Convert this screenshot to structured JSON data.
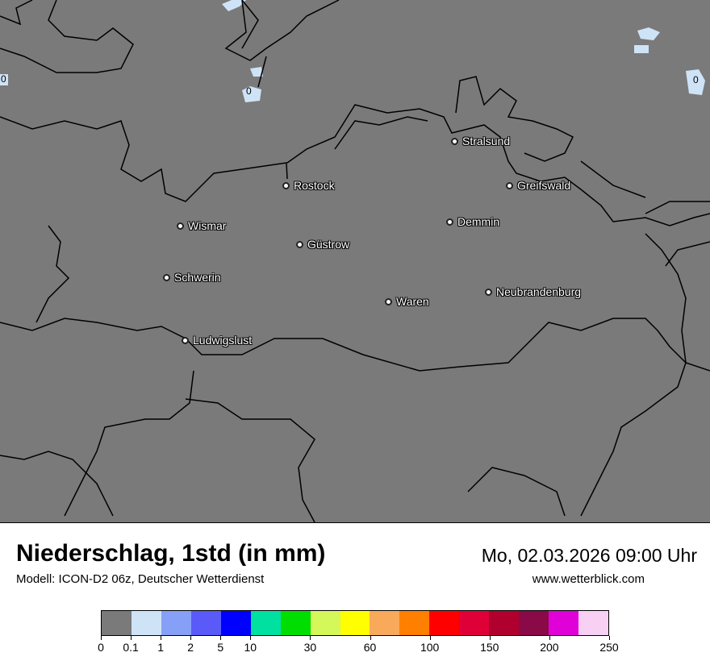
{
  "header": {
    "title": "Niederschlag, 1std (in mm)",
    "model": "Modell: ICON-D2 06z, Deutscher Wetterdienst",
    "datetime": "Mo, 02.03.2026 09:00 Uhr",
    "website": "www.wetterblick.com"
  },
  "map": {
    "background_color": "#7a7a7a",
    "cities": [
      {
        "name": "Stralsund"
      },
      {
        "name": "Rostock"
      },
      {
        "name": "Greifswald"
      },
      {
        "name": "Wismar"
      },
      {
        "name": "Demmin"
      },
      {
        "name": "Güstrow"
      },
      {
        "name": "Schwerin"
      },
      {
        "name": "Neubrandenburg"
      },
      {
        "name": "Waren"
      },
      {
        "name": "Ludwigslust"
      }
    ],
    "contour_labels": [
      "0",
      "0",
      "0"
    ]
  },
  "legend": {
    "ticks": [
      "0",
      "0.1",
      "1",
      "2",
      "5",
      "10",
      "30",
      "60",
      "100",
      "150",
      "200",
      "250"
    ],
    "colors": [
      "#7a7a7a",
      "#cfe3f7",
      "#86a0f7",
      "#5a5af8",
      "#0000ff",
      "#00e0a0",
      "#00dd00",
      "#d4f75a",
      "#ffff00",
      "#f8aa5a",
      "#ff7f00",
      "#ff0000",
      "#e00038",
      "#b0002e",
      "#8a0a48",
      "#e000d8",
      "#f8d0f4"
    ]
  }
}
